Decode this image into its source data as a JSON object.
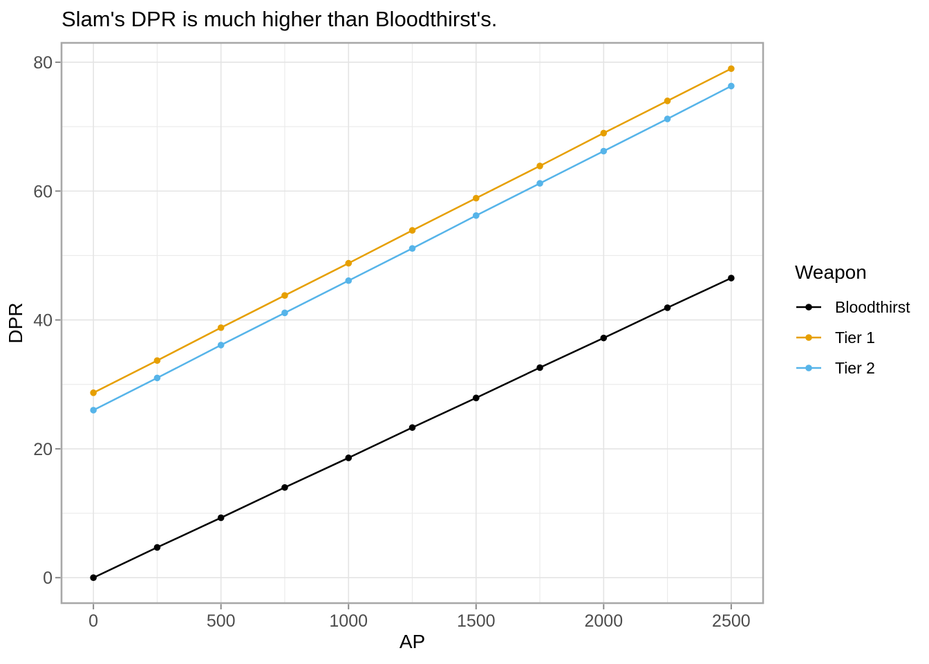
{
  "chart_data": {
    "type": "line",
    "title": "Slam's DPR is much higher than Bloodthirst's.",
    "xlabel": "AP",
    "ylabel": "DPR",
    "x": [
      0,
      250,
      500,
      750,
      1000,
      1250,
      1500,
      1750,
      2000,
      2250,
      2500
    ],
    "series": [
      {
        "name": "Bloodthirst",
        "color": "#000000",
        "values": [
          0,
          4.7,
          9.3,
          14.0,
          18.6,
          23.3,
          27.9,
          32.6,
          37.2,
          41.9,
          46.5
        ]
      },
      {
        "name": "Tier 1",
        "color": "#E69F00",
        "values": [
          28.7,
          33.7,
          38.8,
          43.8,
          48.8,
          53.9,
          58.9,
          63.9,
          69.0,
          74.0,
          79.0
        ]
      },
      {
        "name": "Tier 2",
        "color": "#56B4E9",
        "values": [
          26.0,
          31.0,
          36.1,
          41.1,
          46.1,
          51.1,
          56.2,
          61.2,
          66.2,
          71.2,
          76.3
        ]
      }
    ],
    "x_ticks": [
      0,
      500,
      1000,
      1500,
      2000,
      2500
    ],
    "y_ticks": [
      0,
      20,
      40,
      60,
      80
    ],
    "x_minor_ticks": [
      250,
      750,
      1250,
      1750,
      2250
    ],
    "y_minor_ticks": [
      10,
      30,
      50,
      70
    ],
    "x_domain": [
      -125,
      2625
    ],
    "y_domain": [
      -3.95,
      83.0
    ],
    "grid": true,
    "marker": "circle",
    "legend_title": "Weapon",
    "legend_position": "right"
  },
  "style": {
    "background": "#FFFFFF",
    "panel_border": "#A8A8A8",
    "grid_major": "#E4E4E4",
    "grid_minor": "#EBEBEB",
    "tick_mark": "#888888",
    "tick_label": "#4D4D4D",
    "text": "#000000"
  }
}
